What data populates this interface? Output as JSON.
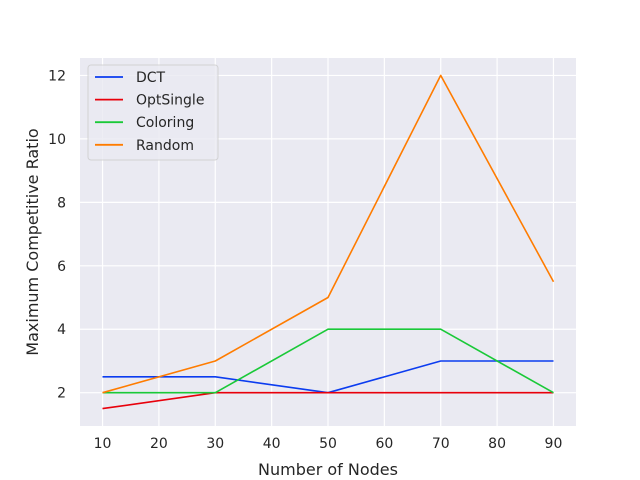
{
  "chart_data": {
    "type": "line",
    "title": "",
    "xlabel": "Number of Nodes",
    "ylabel": "Maximum Competitive Ratio",
    "x": [
      10,
      30,
      50,
      70,
      90
    ],
    "xticks": [
      10,
      20,
      30,
      40,
      50,
      60,
      70,
      80,
      90
    ],
    "yticks": [
      2,
      4,
      6,
      8,
      10,
      12
    ],
    "xlim": [
      6,
      94
    ],
    "ylim": [
      0.95,
      12.55
    ],
    "grid": true,
    "legend_position": "top-left",
    "series": [
      {
        "name": "DCT",
        "color": "#0b3cf0",
        "values": [
          2.5,
          2.5,
          2.0,
          3.0,
          3.0
        ]
      },
      {
        "name": "OptSingle",
        "color": "#e8000b",
        "values": [
          1.5,
          2.0,
          2.0,
          2.0,
          2.0
        ]
      },
      {
        "name": "Coloring",
        "color": "#1ac938",
        "values": [
          2.0,
          2.0,
          4.0,
          4.0,
          2.0
        ]
      },
      {
        "name": "Random",
        "color": "#ff7c00",
        "values": [
          2.0,
          3.0,
          5.0,
          12.0,
          5.5
        ]
      }
    ]
  }
}
